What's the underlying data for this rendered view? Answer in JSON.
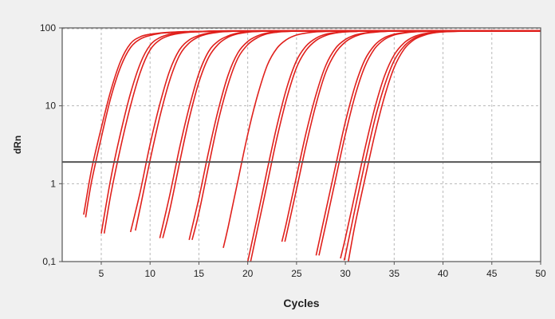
{
  "chart_data": {
    "type": "line",
    "title": "",
    "xlabel": "Cycles",
    "ylabel": "dRn",
    "yscale": "log",
    "xlim": [
      1,
      50
    ],
    "ylim": [
      0.1,
      100
    ],
    "grid": true,
    "x_ticks": [
      5,
      10,
      15,
      20,
      25,
      30,
      35,
      40,
      45,
      50
    ],
    "x_tick_labels": [
      "5",
      "10",
      "15",
      "20",
      "25",
      "30",
      "35",
      "40",
      "45",
      "50"
    ],
    "y_ticks": [
      0.1,
      1,
      10,
      100
    ],
    "y_tick_labels": [
      "0,1",
      "1",
      "10",
      "100"
    ],
    "threshold": 1.9,
    "series_color": "#e0201c",
    "threshold_color": "#555555",
    "series": [
      {
        "x": [
          3.2,
          4,
          5,
          6,
          7,
          8,
          9,
          10,
          11,
          12,
          13,
          14,
          15,
          16,
          18,
          20,
          22,
          25,
          30,
          35,
          40,
          45,
          50
        ],
        "values": [
          0.4,
          1.5,
          5.2,
          16,
          38,
          63,
          77,
          83,
          86,
          88,
          89,
          90,
          90,
          90.5,
          91,
          91,
          91,
          91,
          91,
          91,
          91,
          91,
          91
        ]
      },
      {
        "x": [
          3.4,
          4,
          5,
          6,
          7,
          8,
          9,
          10,
          11,
          12,
          13,
          14,
          15,
          16,
          18,
          20,
          22,
          25,
          30,
          35,
          40,
          45,
          50
        ],
        "values": [
          0.37,
          1.05,
          3.9,
          13,
          32,
          56,
          72,
          80,
          85,
          87,
          89,
          90,
          90,
          91,
          91,
          91,
          91,
          91,
          91,
          91,
          91,
          91,
          91
        ]
      },
      {
        "x": [
          5,
          6,
          7,
          8,
          9,
          10,
          11,
          12,
          13,
          14,
          15,
          16,
          17,
          18,
          20,
          22,
          25,
          30,
          35,
          40,
          45,
          50
        ],
        "values": [
          0.23,
          1.2,
          4.6,
          14.5,
          35,
          60,
          75,
          83,
          87,
          89,
          90,
          91,
          91.5,
          92,
          92,
          92,
          92,
          92,
          92,
          92,
          92,
          92
        ]
      },
      {
        "x": [
          5.3,
          6,
          7,
          8,
          9,
          10,
          11,
          12,
          13,
          14,
          15,
          16,
          17,
          18,
          20,
          22,
          25,
          30,
          35,
          40,
          45,
          50
        ],
        "values": [
          0.23,
          0.75,
          3.0,
          10,
          27,
          52,
          70,
          80,
          85,
          88,
          89,
          90,
          91,
          91,
          91,
          91,
          91,
          91,
          91,
          91,
          91,
          91
        ]
      },
      {
        "x": [
          8,
          9,
          10,
          11,
          12,
          13,
          14,
          15,
          16,
          17,
          18,
          19,
          20,
          22,
          24,
          26,
          30,
          35,
          40,
          45,
          50
        ],
        "values": [
          0.24,
          0.8,
          3.2,
          10.5,
          28,
          52,
          70,
          80,
          86,
          89,
          90,
          91,
          91.5,
          92,
          92,
          92,
          92,
          92,
          92,
          92,
          92
        ]
      },
      {
        "x": [
          8.5,
          9,
          10,
          11,
          12,
          13,
          14,
          15,
          16,
          17,
          18,
          19,
          20,
          22,
          24,
          26,
          30,
          35,
          40,
          45,
          50
        ],
        "values": [
          0.25,
          0.5,
          2.0,
          7.2,
          21,
          44,
          64,
          77,
          84,
          88,
          90,
          91,
          91,
          91,
          91,
          91,
          91,
          91,
          91,
          91,
          91
        ]
      },
      {
        "x": [
          11,
          12,
          13,
          14,
          15,
          16,
          17,
          18,
          19,
          20,
          21,
          22,
          23,
          25,
          27,
          30,
          35,
          40,
          45,
          50
        ],
        "values": [
          0.2,
          0.7,
          2.8,
          9.5,
          26,
          50,
          68,
          79,
          86,
          89,
          90,
          91,
          91.5,
          92,
          92,
          92,
          92,
          92,
          92,
          92
        ]
      },
      {
        "x": [
          11.3,
          12,
          13,
          14,
          15,
          16,
          17,
          18,
          19,
          20,
          21,
          22,
          23,
          25,
          27,
          30,
          35,
          40,
          45,
          50
        ],
        "values": [
          0.2,
          0.45,
          1.8,
          6.8,
          20,
          42,
          62,
          76,
          84,
          88,
          90,
          91,
          91,
          91,
          91,
          91,
          91,
          91,
          91,
          91
        ]
      },
      {
        "x": [
          14,
          15,
          16,
          17,
          18,
          19,
          20,
          21,
          22,
          23,
          24,
          25,
          26,
          28,
          30,
          33,
          35,
          40,
          45,
          50
        ],
        "values": [
          0.19,
          0.65,
          2.6,
          9,
          25,
          48,
          67,
          79,
          86,
          89,
          90,
          91,
          91.5,
          92,
          92,
          92,
          92,
          92,
          92,
          92
        ]
      },
      {
        "x": [
          14.3,
          15,
          16,
          17,
          18,
          19,
          20,
          21,
          22,
          23,
          24,
          25,
          26,
          28,
          30,
          33,
          35,
          40,
          45,
          50
        ],
        "values": [
          0.19,
          0.42,
          1.7,
          6.5,
          19,
          41,
          61,
          75,
          84,
          88,
          90,
          91,
          91,
          91,
          91,
          91,
          91,
          91,
          91,
          91
        ]
      },
      {
        "x": [
          17.5,
          18,
          19,
          20,
          21,
          22,
          23,
          24,
          25,
          26,
          27,
          28,
          29,
          30,
          32,
          35,
          40,
          45,
          50
        ],
        "values": [
          0.15,
          0.28,
          1.1,
          4.3,
          13.5,
          33,
          55,
          71,
          81,
          86,
          89,
          90,
          91,
          91,
          91.5,
          92,
          92,
          92,
          92
        ]
      },
      {
        "x": [
          20,
          21,
          22,
          23,
          24,
          25,
          26,
          27,
          28,
          29,
          30,
          31,
          32,
          34,
          36,
          40,
          45,
          50
        ],
        "values": [
          0.1,
          0.38,
          1.5,
          5.6,
          17,
          38,
          59,
          74,
          83,
          87,
          89,
          90,
          91,
          91.5,
          92,
          92,
          92,
          92
        ]
      },
      {
        "x": [
          20.3,
          21,
          22,
          23,
          24,
          25,
          26,
          27,
          28,
          29,
          30,
          31,
          32,
          34,
          36,
          40,
          45,
          50
        ],
        "values": [
          0.1,
          0.26,
          1.0,
          3.9,
          12.5,
          31,
          52,
          69,
          80,
          86,
          89,
          90,
          91,
          91,
          91,
          91,
          91,
          91
        ]
      },
      {
        "x": [
          23.5,
          24,
          25,
          26,
          27,
          28,
          29,
          30,
          31,
          32,
          33,
          34,
          35,
          37,
          40,
          45,
          50
        ],
        "values": [
          0.18,
          0.33,
          1.25,
          4.6,
          14,
          33,
          55,
          71,
          81,
          86,
          89,
          90,
          91,
          92,
          92,
          92,
          92
        ]
      },
      {
        "x": [
          23.8,
          24,
          25,
          26,
          27,
          28,
          29,
          30,
          31,
          32,
          33,
          34,
          35,
          37,
          40,
          45,
          50
        ],
        "values": [
          0.18,
          0.23,
          0.85,
          3.2,
          10.5,
          27,
          48,
          66,
          78,
          85,
          88,
          90,
          91,
          91,
          91,
          91,
          91
        ]
      },
      {
        "x": [
          27,
          28,
          29,
          30,
          31,
          32,
          33,
          34,
          35,
          36,
          37,
          38,
          40,
          42,
          45,
          50
        ],
        "values": [
          0.12,
          0.45,
          1.7,
          6.2,
          18,
          39,
          60,
          75,
          83,
          87,
          89,
          90,
          91,
          92,
          92,
          92
        ]
      },
      {
        "x": [
          27.3,
          28,
          29,
          30,
          31,
          32,
          33,
          34,
          35,
          36,
          37,
          38,
          40,
          42,
          45,
          50
        ],
        "values": [
          0.12,
          0.3,
          1.15,
          4.3,
          13.5,
          32,
          54,
          71,
          81,
          86,
          89,
          90,
          91,
          91,
          91,
          91
        ]
      },
      {
        "x": [
          29.5,
          30,
          31,
          32,
          33,
          34,
          35,
          36,
          37,
          38,
          39,
          40,
          41,
          43,
          45,
          50
        ],
        "values": [
          0.11,
          0.2,
          0.75,
          2.8,
          9.2,
          24,
          45,
          64,
          77,
          84,
          88,
          90,
          91,
          92,
          92,
          92
        ]
      },
      {
        "x": [
          29.9,
          30,
          31,
          32,
          33,
          34,
          35,
          36,
          37,
          38,
          39,
          40,
          41,
          43,
          45,
          50
        ],
        "values": [
          0.11,
          0.12,
          0.48,
          1.85,
          6.5,
          18,
          38,
          58,
          73,
          82,
          87,
          89,
          90,
          91,
          91,
          91
        ]
      },
      {
        "x": [
          30.3,
          31,
          32,
          33,
          34,
          35,
          36,
          37,
          38,
          39,
          40,
          41,
          42,
          44,
          46,
          50
        ],
        "values": [
          0.1,
          0.3,
          1.15,
          4.2,
          13,
          31,
          53,
          70,
          80,
          86,
          89,
          90,
          91,
          92,
          92,
          92
        ]
      }
    ]
  }
}
